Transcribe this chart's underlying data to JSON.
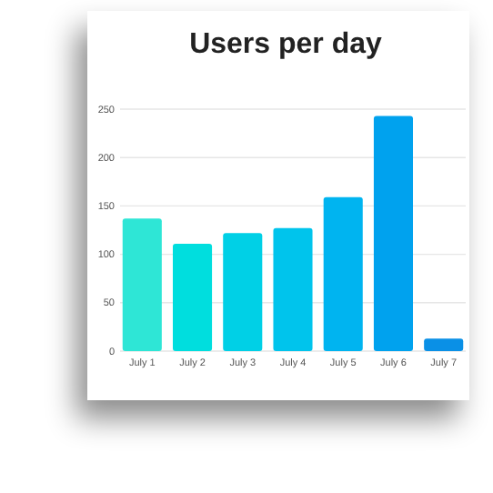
{
  "chart_data": {
    "type": "bar",
    "title": "Users per day",
    "categories": [
      "July 1",
      "July 2",
      "July 3",
      "July 4",
      "July 5",
      "July 6",
      "July 7"
    ],
    "values": [
      137,
      111,
      122,
      127,
      159,
      243,
      13
    ],
    "colors": [
      "#2ee6d6",
      "#00dede",
      "#00d0e6",
      "#00c4ec",
      "#00b4f0",
      "#00a2ee",
      "#0a90e6"
    ],
    "ylim": [
      0,
      250
    ],
    "yticks": [
      0,
      50,
      100,
      150,
      200,
      250
    ],
    "grid": "y"
  }
}
